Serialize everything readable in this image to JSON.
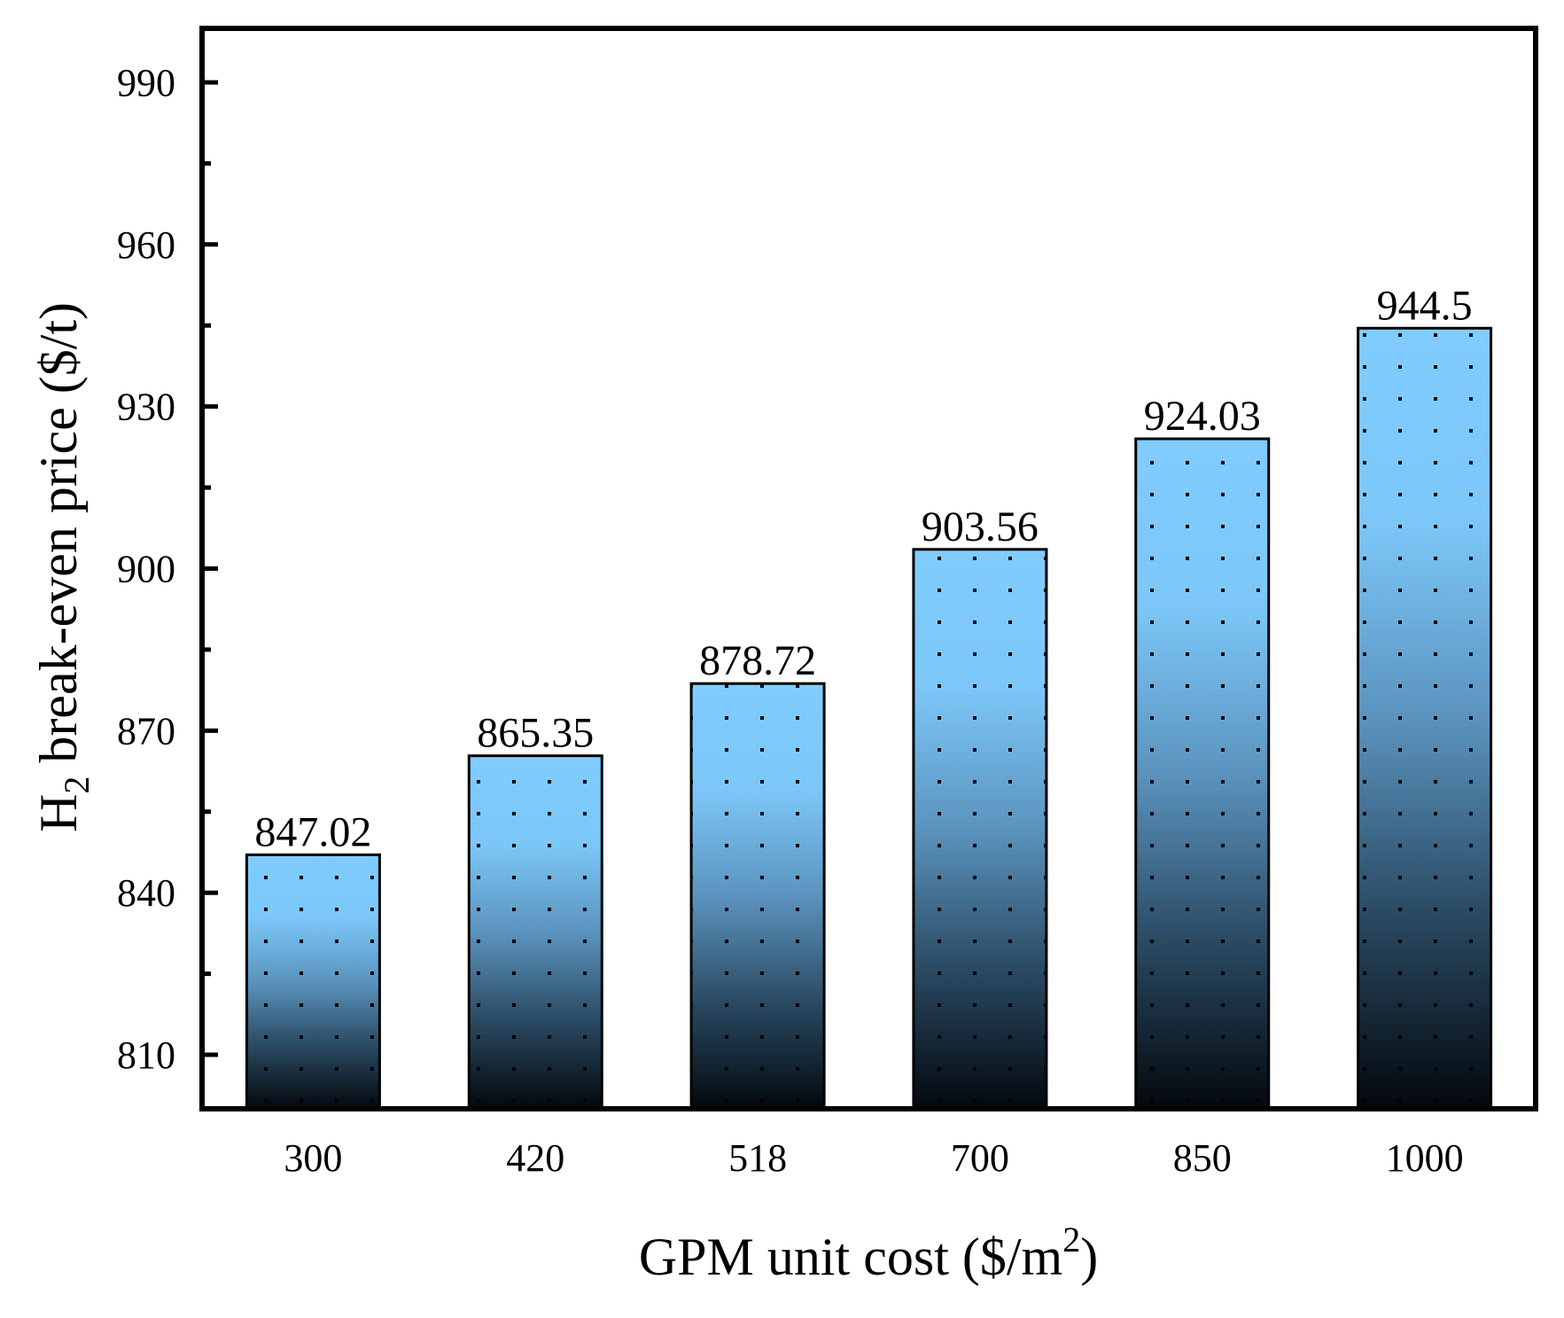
{
  "chart_data": {
    "type": "bar",
    "title": "",
    "xlabel": "GPM unit cost ($/m2)",
    "xlabel_parts": {
      "main": "GPM unit cost ($/m",
      "superscript": "2",
      "close": ")"
    },
    "ylabel": "H2 break-even price ($/t)",
    "ylabel_parts": {
      "main": "H",
      "subscript": "2",
      "rest": " break-even price ($/t)"
    },
    "categories": [
      "300",
      "420",
      "518",
      "700",
      "850",
      "1000"
    ],
    "values": [
      847.02,
      865.35,
      878.72,
      903.56,
      924.03,
      944.5
    ],
    "data_labels": [
      "847.02",
      "865.35",
      "878.72",
      "903.56",
      "924.03",
      "944.5"
    ],
    "ylim": [
      800,
      1000
    ],
    "yticks": [
      810,
      840,
      870,
      900,
      930,
      960,
      990
    ],
    "ytick_labels": [
      "810",
      "840",
      "870",
      "900",
      "930",
      "960",
      "990"
    ],
    "grid": false,
    "legend": "none",
    "bar_gradient": {
      "top": "#80ccff",
      "bottom": "#03080d"
    },
    "bar_pattern": "dots"
  }
}
